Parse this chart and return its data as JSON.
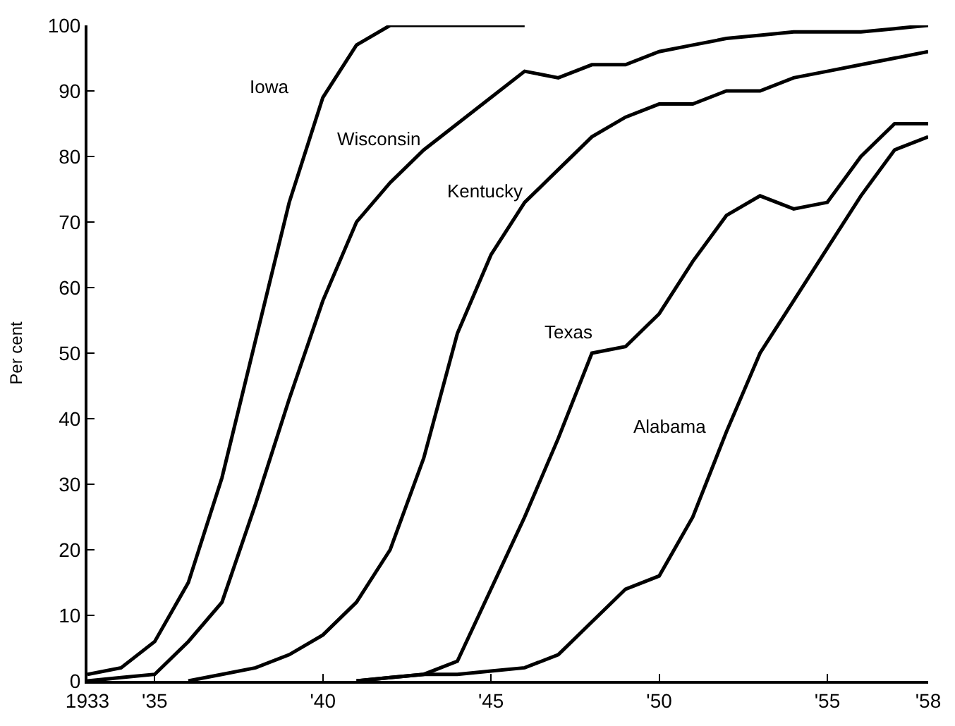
{
  "chart_data": {
    "type": "line",
    "ylabel": "Per cent",
    "xlim": [
      1933,
      1958
    ],
    "ylim": [
      0,
      100
    ],
    "xticks": [
      {
        "value": 1933,
        "label": "1933"
      },
      {
        "value": 1935,
        "label": "'35"
      },
      {
        "value": 1940,
        "label": "'40"
      },
      {
        "value": 1945,
        "label": "'45"
      },
      {
        "value": 1950,
        "label": "'50"
      },
      {
        "value": 1955,
        "label": "'55"
      },
      {
        "value": 1958,
        "label": "'58"
      }
    ],
    "yticks": [
      0,
      10,
      20,
      30,
      40,
      50,
      60,
      70,
      80,
      90,
      100
    ],
    "marker": "none",
    "line_style": "solid",
    "series": [
      {
        "name": "Iowa",
        "color": "#000000",
        "x": [
          1933,
          1934,
          1935,
          1936,
          1937,
          1938,
          1939,
          1940,
          1941,
          1942,
          1946
        ],
        "values": [
          1,
          2,
          6,
          15,
          31,
          52,
          73,
          89,
          97,
          100,
          100
        ]
      },
      {
        "name": "Wisconsin",
        "color": "#000000",
        "x": [
          1933,
          1934,
          1935,
          1936,
          1937,
          1938,
          1939,
          1940,
          1941,
          1942,
          1943,
          1944,
          1945,
          1946,
          1947,
          1948,
          1949,
          1950,
          1951,
          1952,
          1953,
          1954,
          1955,
          1956,
          1957,
          1958
        ],
        "values": [
          0,
          0.5,
          1,
          6,
          12,
          27,
          43,
          58,
          70,
          76,
          81,
          85,
          89,
          93,
          92,
          94,
          94,
          96,
          97,
          98,
          98.5,
          99,
          99,
          99,
          99.5,
          100
        ]
      },
      {
        "name": "Kentucky",
        "color": "#000000",
        "x": [
          1936,
          1937,
          1938,
          1939,
          1940,
          1941,
          1942,
          1943,
          1944,
          1945,
          1946,
          1947,
          1948,
          1949,
          1950,
          1951,
          1952,
          1953,
          1954,
          1955,
          1956,
          1957,
          1958
        ],
        "values": [
          0,
          1,
          2,
          4,
          7,
          12,
          20,
          34,
          53,
          65,
          73,
          78,
          83,
          86,
          88,
          88,
          90,
          90,
          92,
          93,
          94,
          95,
          96
        ]
      },
      {
        "name": "Texas",
        "color": "#000000",
        "x": [
          1941,
          1942,
          1943,
          1944,
          1945,
          1946,
          1947,
          1948,
          1949,
          1950,
          1951,
          1952,
          1953,
          1954,
          1955,
          1956,
          1957,
          1958
        ],
        "values": [
          0,
          0.5,
          1,
          3,
          14,
          25,
          37,
          50,
          51,
          56,
          64,
          71,
          74,
          72,
          73,
          80,
          85,
          85
        ]
      },
      {
        "name": "Alabama",
        "color": "#000000",
        "x": [
          1941,
          1942,
          1943,
          1944,
          1945,
          1946,
          1947,
          1948,
          1949,
          1950,
          1951,
          1952,
          1953,
          1954,
          1955,
          1956,
          1957,
          1958
        ],
        "values": [
          0,
          0.5,
          1,
          1,
          1.5,
          2,
          4,
          9,
          14,
          16,
          25,
          38,
          50,
          58,
          66,
          74,
          81,
          83
        ]
      }
    ]
  }
}
